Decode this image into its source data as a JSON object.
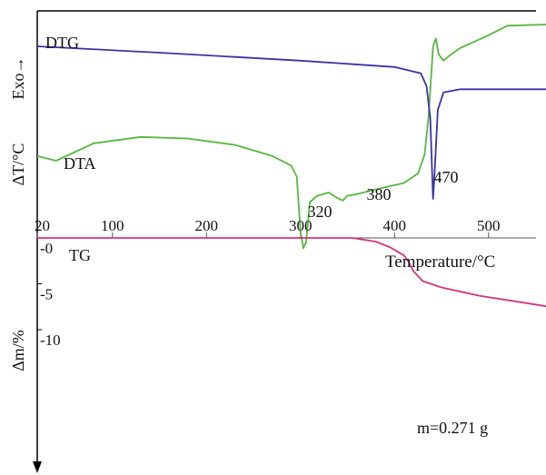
{
  "chart_data": {
    "type": "line",
    "x_axis": {
      "label": "Temperature/°C",
      "ticks": [
        "20",
        "100",
        "200",
        "300",
        "400",
        "500"
      ],
      "tick_values": [
        20,
        100,
        200,
        300,
        400,
        500
      ]
    },
    "upper_panel": {
      "ylabel": "ΔT/°C",
      "side_label": "Exo→",
      "series": [
        {
          "name": "DTG",
          "color": "#3a33a8",
          "x": [
            20,
            150,
            300,
            400,
            428,
            434,
            438,
            440,
            441,
            443,
            446,
            452,
            470,
            520,
            577
          ],
          "y": [
            10.0,
            9.6,
            9.1,
            8.7,
            8.3,
            7.5,
            5.5,
            2.0,
            0.4,
            2.5,
            6.0,
            7.1,
            7.3,
            7.3,
            7.3
          ]
        },
        {
          "name": "DTA",
          "color": "#55b83e",
          "x": [
            20,
            40,
            80,
            130,
            180,
            230,
            270,
            290,
            296,
            300,
            303,
            306,
            310,
            318,
            330,
            338,
            345,
            350,
            360,
            380,
            410,
            425,
            432,
            436,
            439,
            441,
            444,
            447,
            452,
            458,
            470,
            500,
            520,
            577
          ],
          "y": [
            3.1,
            2.8,
            3.9,
            4.3,
            4.2,
            3.8,
            3.1,
            2.5,
            1.8,
            -1.7,
            -2.7,
            -2.3,
            0.2,
            0.6,
            0.8,
            0.5,
            0.3,
            0.6,
            0.7,
            1.0,
            1.4,
            2.0,
            3.2,
            5.5,
            8.2,
            10.0,
            10.5,
            9.5,
            9.1,
            9.4,
            9.9,
            10.7,
            11.3,
            11.4
          ]
        }
      ],
      "annotations": [
        {
          "text": "320",
          "x": 305,
          "y": -2.5
        },
        {
          "text": "380",
          "x": 340,
          "y": 0.3
        },
        {
          "text": "470",
          "x": 441,
          "y": 1.0
        }
      ]
    },
    "lower_panel": {
      "ylabel": "Δm/%",
      "ytick_labels": [
        "-0",
        "-5",
        "-10"
      ],
      "ytick_values": [
        0,
        -5,
        -10
      ],
      "series": [
        {
          "name": "TG",
          "color": "#d6337a",
          "x": [
            20,
            100,
            200,
            300,
            355,
            380,
            395,
            410,
            415,
            420,
            430,
            450,
            490,
            540,
            577
          ],
          "y": [
            0.0,
            0.0,
            0.0,
            0.0,
            0.0,
            -0.4,
            -1.0,
            -1.9,
            -2.6,
            -3.6,
            -4.7,
            -5.4,
            -6.3,
            -7.1,
            -7.7
          ]
        }
      ],
      "note": "m=0.271 g"
    },
    "grid": false
  }
}
